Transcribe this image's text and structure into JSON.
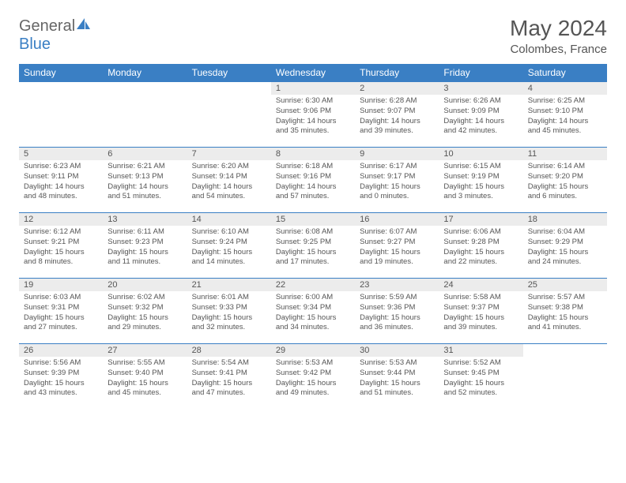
{
  "brand": {
    "part1": "General",
    "part2": "Blue"
  },
  "title": "May 2024",
  "location": "Colombes, France",
  "colors": {
    "header_bg": "#3a7fc4",
    "header_text": "#ffffff",
    "daynum_bg": "#ececec",
    "text": "#555555",
    "border": "#3a7fc4"
  },
  "fonts": {
    "title_size": 28,
    "header_size": 12,
    "daynum_size": 11,
    "body_size": 9.5
  },
  "weekdays": [
    "Sunday",
    "Monday",
    "Tuesday",
    "Wednesday",
    "Thursday",
    "Friday",
    "Saturday"
  ],
  "weeks": [
    [
      null,
      null,
      null,
      {
        "n": "1",
        "sr": "6:30 AM",
        "ss": "9:06 PM",
        "dl": "14 hours and 35 minutes."
      },
      {
        "n": "2",
        "sr": "6:28 AM",
        "ss": "9:07 PM",
        "dl": "14 hours and 39 minutes."
      },
      {
        "n": "3",
        "sr": "6:26 AM",
        "ss": "9:09 PM",
        "dl": "14 hours and 42 minutes."
      },
      {
        "n": "4",
        "sr": "6:25 AM",
        "ss": "9:10 PM",
        "dl": "14 hours and 45 minutes."
      }
    ],
    [
      {
        "n": "5",
        "sr": "6:23 AM",
        "ss": "9:11 PM",
        "dl": "14 hours and 48 minutes."
      },
      {
        "n": "6",
        "sr": "6:21 AM",
        "ss": "9:13 PM",
        "dl": "14 hours and 51 minutes."
      },
      {
        "n": "7",
        "sr": "6:20 AM",
        "ss": "9:14 PM",
        "dl": "14 hours and 54 minutes."
      },
      {
        "n": "8",
        "sr": "6:18 AM",
        "ss": "9:16 PM",
        "dl": "14 hours and 57 minutes."
      },
      {
        "n": "9",
        "sr": "6:17 AM",
        "ss": "9:17 PM",
        "dl": "15 hours and 0 minutes."
      },
      {
        "n": "10",
        "sr": "6:15 AM",
        "ss": "9:19 PM",
        "dl": "15 hours and 3 minutes."
      },
      {
        "n": "11",
        "sr": "6:14 AM",
        "ss": "9:20 PM",
        "dl": "15 hours and 6 minutes."
      }
    ],
    [
      {
        "n": "12",
        "sr": "6:12 AM",
        "ss": "9:21 PM",
        "dl": "15 hours and 8 minutes."
      },
      {
        "n": "13",
        "sr": "6:11 AM",
        "ss": "9:23 PM",
        "dl": "15 hours and 11 minutes."
      },
      {
        "n": "14",
        "sr": "6:10 AM",
        "ss": "9:24 PM",
        "dl": "15 hours and 14 minutes."
      },
      {
        "n": "15",
        "sr": "6:08 AM",
        "ss": "9:25 PM",
        "dl": "15 hours and 17 minutes."
      },
      {
        "n": "16",
        "sr": "6:07 AM",
        "ss": "9:27 PM",
        "dl": "15 hours and 19 minutes."
      },
      {
        "n": "17",
        "sr": "6:06 AM",
        "ss": "9:28 PM",
        "dl": "15 hours and 22 minutes."
      },
      {
        "n": "18",
        "sr": "6:04 AM",
        "ss": "9:29 PM",
        "dl": "15 hours and 24 minutes."
      }
    ],
    [
      {
        "n": "19",
        "sr": "6:03 AM",
        "ss": "9:31 PM",
        "dl": "15 hours and 27 minutes."
      },
      {
        "n": "20",
        "sr": "6:02 AM",
        "ss": "9:32 PM",
        "dl": "15 hours and 29 minutes."
      },
      {
        "n": "21",
        "sr": "6:01 AM",
        "ss": "9:33 PM",
        "dl": "15 hours and 32 minutes."
      },
      {
        "n": "22",
        "sr": "6:00 AM",
        "ss": "9:34 PM",
        "dl": "15 hours and 34 minutes."
      },
      {
        "n": "23",
        "sr": "5:59 AM",
        "ss": "9:36 PM",
        "dl": "15 hours and 36 minutes."
      },
      {
        "n": "24",
        "sr": "5:58 AM",
        "ss": "9:37 PM",
        "dl": "15 hours and 39 minutes."
      },
      {
        "n": "25",
        "sr": "5:57 AM",
        "ss": "9:38 PM",
        "dl": "15 hours and 41 minutes."
      }
    ],
    [
      {
        "n": "26",
        "sr": "5:56 AM",
        "ss": "9:39 PM",
        "dl": "15 hours and 43 minutes."
      },
      {
        "n": "27",
        "sr": "5:55 AM",
        "ss": "9:40 PM",
        "dl": "15 hours and 45 minutes."
      },
      {
        "n": "28",
        "sr": "5:54 AM",
        "ss": "9:41 PM",
        "dl": "15 hours and 47 minutes."
      },
      {
        "n": "29",
        "sr": "5:53 AM",
        "ss": "9:42 PM",
        "dl": "15 hours and 49 minutes."
      },
      {
        "n": "30",
        "sr": "5:53 AM",
        "ss": "9:44 PM",
        "dl": "15 hours and 51 minutes."
      },
      {
        "n": "31",
        "sr": "5:52 AM",
        "ss": "9:45 PM",
        "dl": "15 hours and 52 minutes."
      },
      null
    ]
  ],
  "labels": {
    "sunrise": "Sunrise:",
    "sunset": "Sunset:",
    "daylight": "Daylight:"
  }
}
